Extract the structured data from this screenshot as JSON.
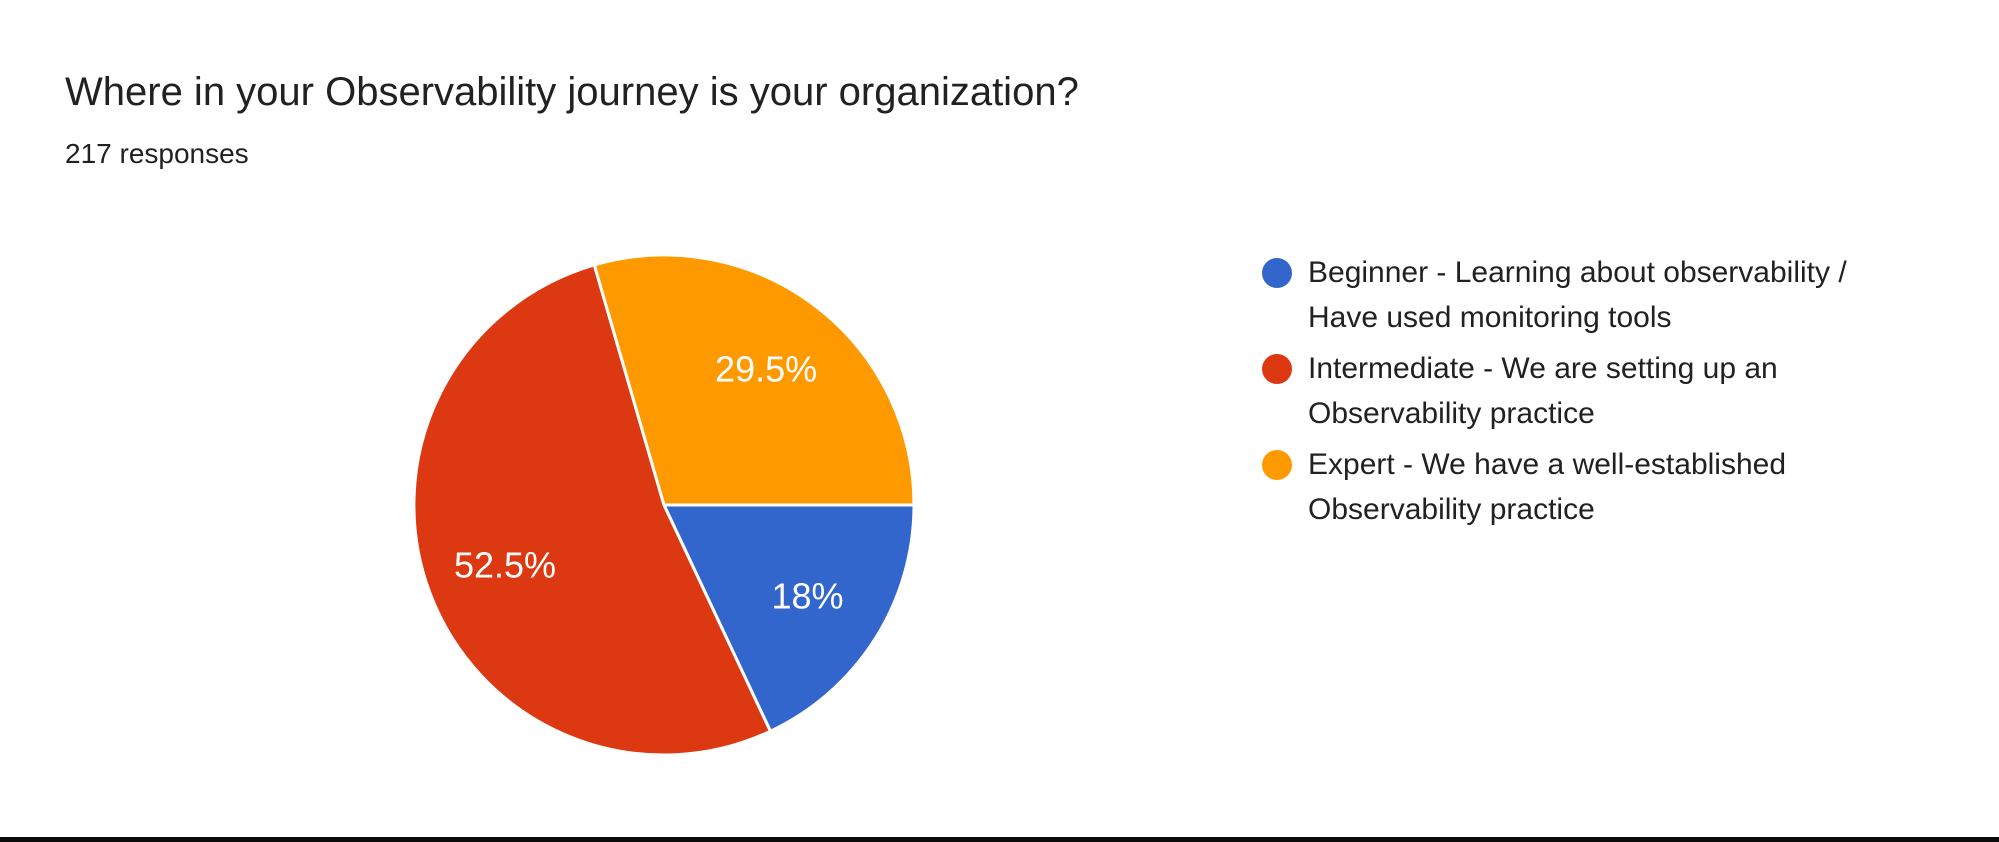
{
  "page": {
    "background_color": "#ffffff",
    "bottom_bar_color": "#0b0b0b"
  },
  "header": {
    "title": "Where in your Observability journey is your organization?",
    "responses": "217 responses"
  },
  "chart_data": {
    "type": "pie",
    "title": "Where in your Observability journey is your organization?",
    "subtitle": "217 responses",
    "total_responses": 217,
    "legend_position": "right",
    "start_angle": "first slice starts at 3 o'clock, clockwise",
    "slice_label_color": "#ffffff",
    "slices": [
      {
        "label": "Beginner - Learning about observability / Have used monitoring tools",
        "percent": 18,
        "display": "18%",
        "color": "#3366CC"
      },
      {
        "label": "Intermediate - We are setting up an Observability practice",
        "percent": 52.5,
        "display": "52.5%",
        "color": "#DC3912"
      },
      {
        "label": "Expert - We have a well-established Observability practice",
        "percent": 29.5,
        "display": "29.5%",
        "color": "#FF9900"
      }
    ]
  }
}
